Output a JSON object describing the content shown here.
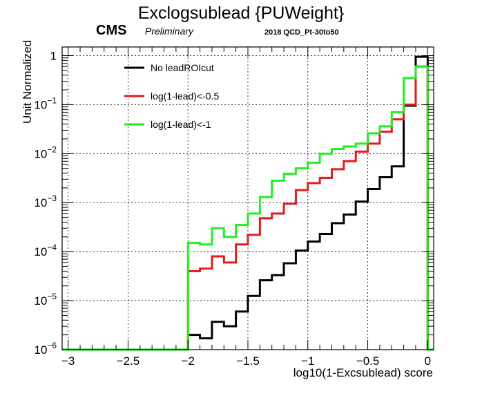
{
  "chart_data": {
    "type": "line",
    "title": "Exclogsublead {PUWeight}",
    "cms_label": "CMS",
    "preliminary_label": "Preliminary",
    "dataset_label": "2018 QCD_Pt-30to50",
    "xlabel": "log10(1-Excsublead) score",
    "ylabel": "Unit Normalized",
    "xlim": [
      -3.05,
      0.05
    ],
    "ylim": [
      1e-06,
      1.5
    ],
    "yscale": "log",
    "grid": true,
    "legend_position": "top-left",
    "x_ticks": [
      {
        "value": -3,
        "label": "−3"
      },
      {
        "value": -2.5,
        "label": "−2.5"
      },
      {
        "value": -2,
        "label": "−2"
      },
      {
        "value": -1.5,
        "label": "−1.5"
      },
      {
        "value": -1,
        "label": "−1"
      },
      {
        "value": -0.5,
        "label": "−0.5"
      },
      {
        "value": 0,
        "label": "0"
      }
    ],
    "y_ticks": [
      {
        "exp": -6,
        "base": "10",
        "sup": "−6"
      },
      {
        "exp": -5,
        "base": "10",
        "sup": "−5"
      },
      {
        "exp": -4,
        "base": "10",
        "sup": "−4"
      },
      {
        "exp": -3,
        "base": "10",
        "sup": "−3"
      },
      {
        "exp": -2,
        "base": "10",
        "sup": "−2"
      },
      {
        "exp": -1,
        "base": "10",
        "sup": "−1"
      },
      {
        "exp": 0,
        "base": "1",
        "sup": ""
      }
    ],
    "bin_edges": [
      -2.0,
      -1.9,
      -1.8,
      -1.7,
      -1.6,
      -1.5,
      -1.4,
      -1.3,
      -1.2,
      -1.1,
      -1.0,
      -0.9,
      -0.8,
      -0.7,
      -0.6,
      -0.5,
      -0.4,
      -0.3,
      -0.2,
      -0.1,
      0.0
    ],
    "series": [
      {
        "name": "No leadROIcut",
        "color": "#000000",
        "values": [
          2e-06,
          1.7e-06,
          3.7e-06,
          3e-06,
          6e-06,
          1.25e-05,
          2.6e-05,
          3.3e-05,
          5.8e-05,
          0.000105,
          0.00016,
          0.00023,
          0.00038,
          0.00057,
          0.00105,
          0.0019,
          0.0033,
          0.0055,
          0.095,
          0.95
        ]
      },
      {
        "name": "log(1-lead)<-0.5",
        "color": "#e41a1c",
        "values": [
          4e-05,
          4.5e-05,
          8e-05,
          6e-05,
          0.00014,
          0.00022,
          0.00048,
          0.0006,
          0.00095,
          0.0018,
          0.0025,
          0.0032,
          0.0048,
          0.007,
          0.011,
          0.016,
          0.028,
          0.05,
          0.1,
          0.6
        ]
      },
      {
        "name": "log(1-lead)<-1",
        "color": "#22ee22",
        "values": [
          0.00015,
          0.00014,
          0.0003,
          0.0002,
          0.00035,
          0.0006,
          0.0013,
          0.0028,
          0.0039,
          0.005,
          0.0065,
          0.01,
          0.0125,
          0.014,
          0.016,
          0.026,
          0.036,
          0.07,
          0.35,
          0.6
        ]
      }
    ]
  }
}
